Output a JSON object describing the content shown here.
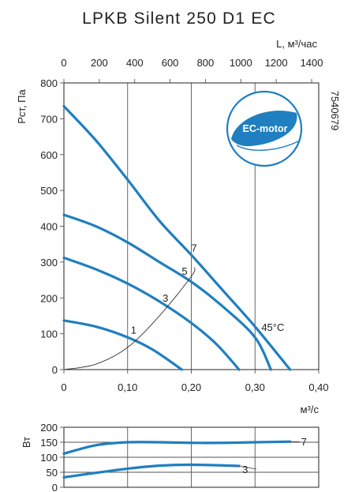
{
  "header": {
    "title": "LPKB Silent 250 D1 EC"
  },
  "badge": {
    "text": "EC-motor",
    "code": "7540679"
  },
  "chart_data": [
    {
      "type": "line",
      "title": "LPKB Silent 250 D1 EC",
      "xlabel": "м³/с",
      "x2label": "L, м³/час",
      "ylabel": "Рст, Па",
      "xlim": [
        0,
        0.4
      ],
      "ylim": [
        0,
        800
      ],
      "x2lim": [
        0,
        1440
      ],
      "xticks": [
        "0",
        "0,10",
        "0,20",
        "0,30",
        "0,40"
      ],
      "x2ticks": [
        "0",
        "200",
        "400",
        "600",
        "800",
        "1000",
        "1200",
        "1400"
      ],
      "yticks": [
        "0",
        "100",
        "200",
        "300",
        "400",
        "500",
        "600",
        "700",
        "800"
      ],
      "grid": true,
      "annotation": "45°C",
      "series": [
        {
          "name": "7",
          "points": [
            [
              0,
              735
            ],
            [
              0.05,
              640
            ],
            [
              0.1,
              530
            ],
            [
              0.15,
              415
            ],
            [
              0.2,
              320
            ],
            [
              0.25,
              220
            ],
            [
              0.3,
              120
            ],
            [
              0.355,
              0
            ]
          ]
        },
        {
          "name": "5",
          "points": [
            [
              0,
              432
            ],
            [
              0.05,
              400
            ],
            [
              0.1,
              355
            ],
            [
              0.15,
              300
            ],
            [
              0.2,
              245
            ],
            [
              0.25,
              175
            ],
            [
              0.3,
              90
            ],
            [
              0.325,
              0
            ]
          ]
        },
        {
          "name": "3",
          "points": [
            [
              0,
              312
            ],
            [
              0.05,
              280
            ],
            [
              0.1,
              240
            ],
            [
              0.15,
              190
            ],
            [
              0.2,
              130
            ],
            [
              0.24,
              70
            ],
            [
              0.275,
              0
            ]
          ]
        },
        {
          "name": "1",
          "points": [
            [
              0,
              137
            ],
            [
              0.05,
              120
            ],
            [
              0.1,
              90
            ],
            [
              0.14,
              55
            ],
            [
              0.185,
              0
            ]
          ]
        }
      ],
      "system_curve": [
        [
          0,
          0
        ],
        [
          0.05,
          15
        ],
        [
          0.1,
          62
        ],
        [
          0.15,
          150
        ],
        [
          0.2,
          260
        ],
        [
          0.205,
          285
        ]
      ]
    },
    {
      "type": "line",
      "ylabel": "Вт",
      "xlim": [
        0,
        0.4
      ],
      "ylim": [
        0,
        200
      ],
      "yticks": [
        "0",
        "50",
        "100",
        "150",
        "200"
      ],
      "grid": true,
      "series": [
        {
          "name": "7",
          "points": [
            [
              0,
              112
            ],
            [
              0.05,
              140
            ],
            [
              0.1,
              150
            ],
            [
              0.15,
              150
            ],
            [
              0.2,
              148
            ],
            [
              0.25,
              148
            ],
            [
              0.3,
              150
            ],
            [
              0.355,
              152
            ]
          ]
        },
        {
          "name": "3",
          "points": [
            [
              0,
              33
            ],
            [
              0.05,
              48
            ],
            [
              0.1,
              62
            ],
            [
              0.15,
              72
            ],
            [
              0.2,
              75
            ],
            [
              0.275,
              71
            ]
          ]
        }
      ]
    }
  ]
}
